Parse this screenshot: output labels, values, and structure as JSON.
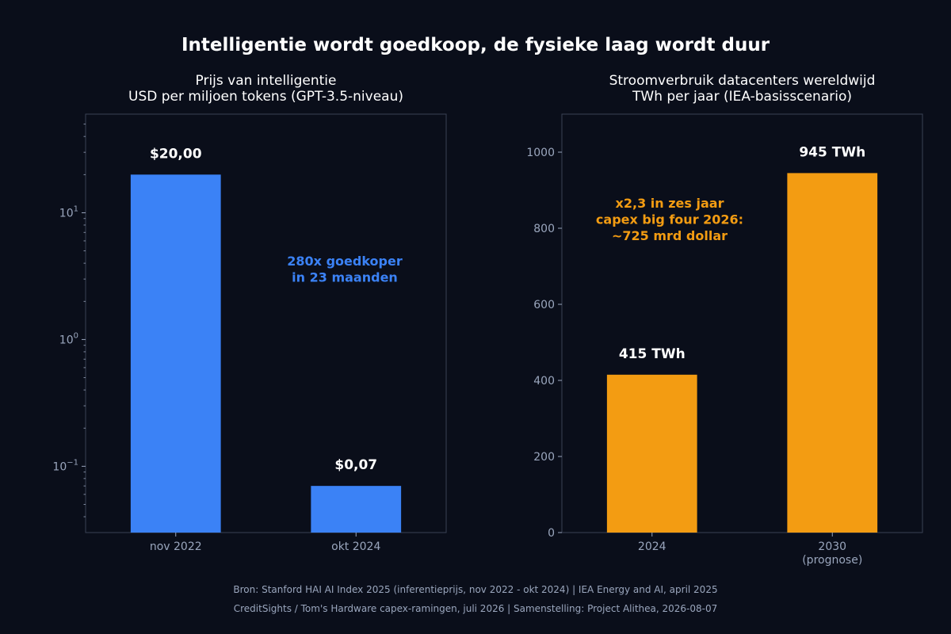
{
  "title": "Intelligentie wordt goedkoop, de fysieke laag wordt duur",
  "colors": {
    "background": "#0a0e1a",
    "blue": "#3b82f6",
    "orange": "#f39c12",
    "axis": "#3a4154",
    "tick_text": "#9aa6bd"
  },
  "chart_data": [
    {
      "type": "bar",
      "title": [
        "Prijs van intelligentie",
        "USD per miljoen tokens (GPT-3.5-niveau)"
      ],
      "categories": [
        "nov 2022",
        "okt 2024"
      ],
      "values": [
        20.0,
        0.07
      ],
      "data_labels": [
        "$20,00",
        "$0,07"
      ],
      "yscale": "log",
      "ylim": [
        0.03,
        60
      ],
      "yticks": [
        0.1,
        1,
        10
      ],
      "color": "#3b82f6",
      "annotation": [
        "280x goedkoper",
        "in 23 maanden"
      ],
      "grid": false
    },
    {
      "type": "bar",
      "title": [
        "Stroomverbruik datacenters wereldwijd",
        "TWh per jaar (IEA-basisscenario)"
      ],
      "categories": [
        [
          "2024"
        ],
        [
          "2030",
          "(prognose)"
        ]
      ],
      "values": [
        415,
        945
      ],
      "data_labels": [
        "415 TWh",
        "945 TWh"
      ],
      "yscale": "linear",
      "ylim": [
        0,
        1100
      ],
      "yticks": [
        0,
        200,
        400,
        600,
        800,
        1000
      ],
      "color": "#f39c12",
      "annotation": [
        "x2,3 in zes jaar",
        "capex big four 2026:",
        "~725 mrd dollar"
      ],
      "grid": false
    }
  ],
  "source": [
    "Bron: Stanford HAI AI Index 2025 (inferentieprijs, nov 2022 - okt 2024) | IEA Energy and AI, april 2025",
    "CreditSights / Tom's Hardware capex-ramingen, juli 2026 | Samenstelling: Project Alithea, 2026-08-07"
  ]
}
